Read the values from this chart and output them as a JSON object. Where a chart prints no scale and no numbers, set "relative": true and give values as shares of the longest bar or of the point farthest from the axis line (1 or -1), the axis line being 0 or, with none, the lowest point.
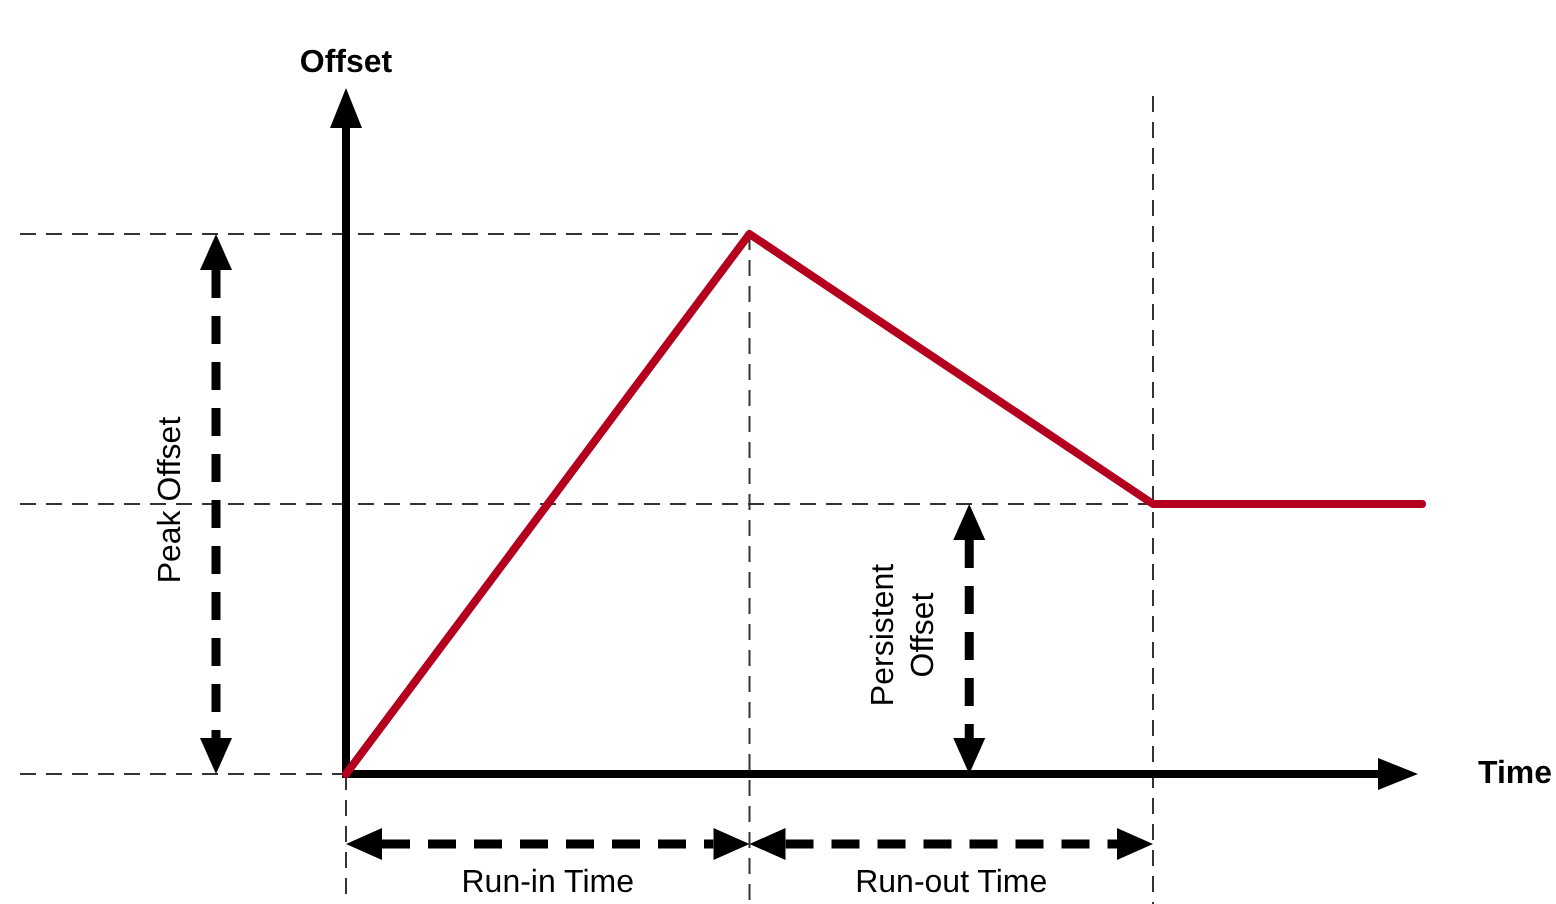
{
  "chart_data": {
    "type": "line",
    "xlabel": "Time",
    "ylabel": "Offset",
    "relative": true,
    "categories": [
      null,
      null,
      null,
      null,
      null,
      null,
      null,
      null,
      null
    ],
    "series": [
      {
        "color": "#b4001e",
        "values": [
          0,
          0.333,
          0.667,
          1,
          0.833,
          0.667,
          0.5,
          0.5,
          0.5
        ]
      }
    ],
    "annotations": [
      "Peak Offset",
      "Persistent Offset",
      "Run-in Time",
      "Run-out Time"
    ],
    "line_style": "solid",
    "marker": "none"
  }
}
